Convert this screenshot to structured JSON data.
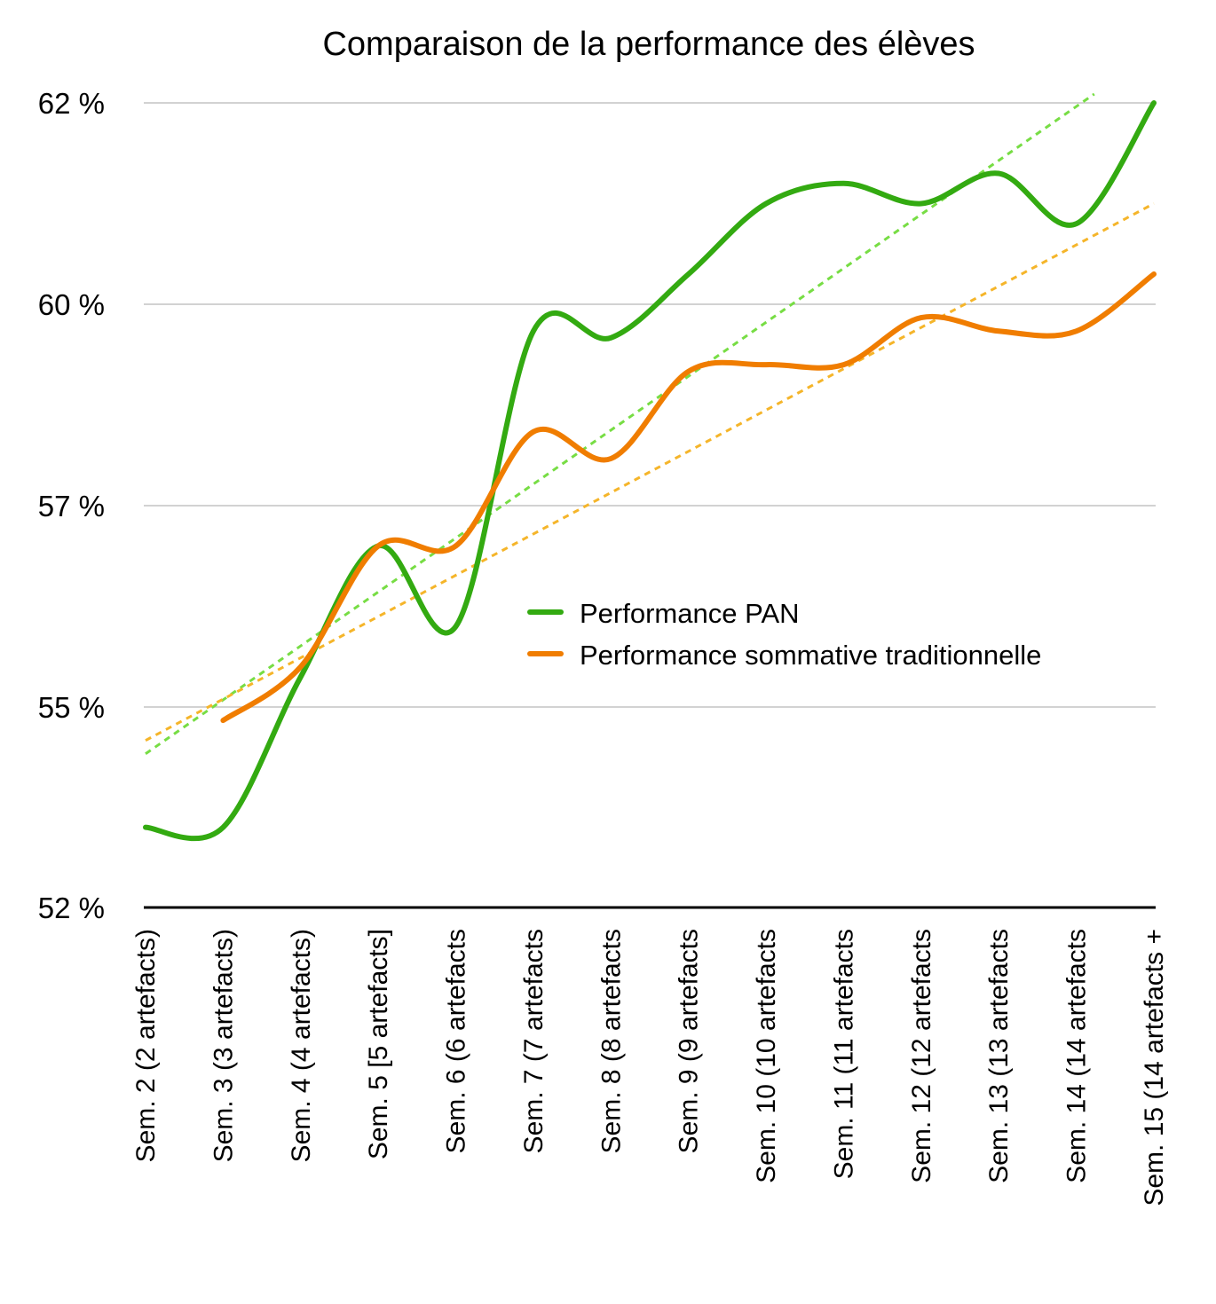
{
  "chart_data": {
    "type": "line",
    "title": "Comparaison de la performance des élèves",
    "xlabel": "",
    "ylabel": "",
    "ylim": [
      52,
      62
    ],
    "yticks": [
      52,
      55,
      57,
      60,
      62
    ],
    "ytick_labels": [
      "52 %",
      "55 %",
      "57 %",
      "60 %",
      "62 %"
    ],
    "grid": true,
    "legend_position": "center-right",
    "categories": [
      "Sem. 2 (2 artefacts)",
      "Sem. 3 (3 artefacts)",
      "Sem. 4 (4 artefacts)",
      "Sem. 5 [5 artefacts]",
      "Sem. 6 (6 artefacts",
      "Sem. 7 (7 artefacts",
      "Sem. 8 (8 artefacts",
      "Sem. 9 (9 artefacts",
      "Sem. 10 (10 artefacts",
      "Sem. 11 (11 artefacts",
      "Sem. 12 (12 artefacts",
      "Sem. 13 (13 artefacts",
      "Sem. 14 (14 artefacts",
      "Sem. 15 (14 artefacts +"
    ],
    "series": [
      {
        "name": "Performance PAN",
        "color": "#33aa11",
        "values": [
          53.2,
          53.2,
          55.3,
          56.6,
          55.8,
          59.6,
          59.5,
          60.3,
          61.0,
          61.2,
          61.0,
          61.3,
          60.8,
          62.0
        ],
        "trendline": {
          "color": "#77dd44",
          "start": 54.3,
          "end": 62.5
        }
      },
      {
        "name": "Performance sommative traditionnelle",
        "color": "#f07d00",
        "values": [
          null,
          54.8,
          55.4,
          56.6,
          56.6,
          58.1,
          57.7,
          59.0,
          59.1,
          59.1,
          59.8,
          59.6,
          59.6,
          60.3
        ],
        "trendline": {
          "color": "#f5b52a",
          "start": 54.5,
          "end": 61.0
        }
      }
    ]
  }
}
